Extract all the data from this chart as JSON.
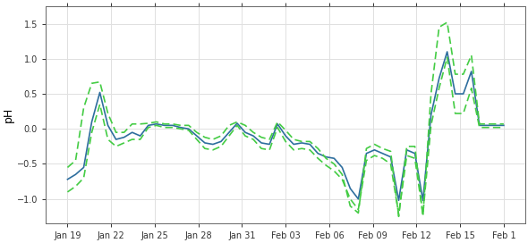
{
  "title": "",
  "ylabel": "pH",
  "ylim": [
    -1.35,
    1.75
  ],
  "yticks": [
    -1.0,
    -0.5,
    0.0,
    0.5,
    1.0,
    1.5
  ],
  "background_color": "#ffffff",
  "grid_color": "#e0e0e0",
  "line_color_solid": "#2e6e9e",
  "line_color_dashed": "#44cc44",
  "x_labels": [
    "Jan 19",
    "Jan 22",
    "Jan 25",
    "Jan 28",
    "Jan 31",
    "Feb 03",
    "Feb 06",
    "Feb 09",
    "Feb 12",
    "Feb 15",
    "Feb 1"
  ],
  "n_points": 55,
  "solid_y": [
    -0.72,
    -0.65,
    -0.55,
    0.1,
    0.52,
    0.05,
    -0.15,
    -0.12,
    -0.05,
    -0.1,
    0.05,
    0.07,
    0.05,
    0.05,
    0.02,
    0.0,
    -0.1,
    -0.2,
    -0.22,
    -0.18,
    -0.05,
    0.08,
    -0.05,
    -0.1,
    -0.2,
    -0.22,
    0.07,
    -0.1,
    -0.22,
    -0.2,
    -0.22,
    -0.35,
    -0.4,
    -0.42,
    -0.55,
    -0.85,
    -1.0,
    -0.35,
    -0.3,
    -0.35,
    -0.4,
    -1.02,
    -0.3,
    -0.35,
    -1.02,
    0.2,
    0.72,
    1.1,
    0.5,
    0.5,
    0.82,
    0.05,
    0.05,
    0.05,
    0.05
  ],
  "dashed_upper_y": [
    -0.55,
    -0.45,
    0.3,
    0.65,
    0.67,
    0.22,
    -0.05,
    -0.05,
    0.07,
    0.07,
    0.08,
    0.1,
    0.07,
    0.07,
    0.05,
    0.05,
    -0.05,
    -0.12,
    -0.15,
    -0.1,
    0.05,
    0.1,
    0.05,
    -0.05,
    -0.12,
    -0.15,
    0.1,
    -0.02,
    -0.15,
    -0.18,
    -0.18,
    -0.28,
    -0.42,
    -0.5,
    -0.65,
    -1.1,
    -1.2,
    -0.28,
    -0.22,
    -0.28,
    -0.32,
    -1.25,
    -0.25,
    -0.25,
    -1.25,
    0.5,
    1.45,
    1.52,
    0.78,
    0.78,
    1.05,
    0.07,
    0.07,
    0.07,
    0.07
  ],
  "dashed_lower_y": [
    -0.9,
    -0.82,
    -0.7,
    -0.05,
    0.35,
    -0.15,
    -0.25,
    -0.2,
    -0.15,
    -0.15,
    0.02,
    0.05,
    0.02,
    0.02,
    0.0,
    -0.02,
    -0.15,
    -0.28,
    -0.3,
    -0.25,
    -0.1,
    0.05,
    -0.1,
    -0.15,
    -0.28,
    -0.3,
    0.02,
    -0.18,
    -0.3,
    -0.28,
    -0.3,
    -0.42,
    -0.52,
    -0.6,
    -0.72,
    -1.0,
    -1.15,
    -0.45,
    -0.38,
    -0.42,
    -0.5,
    -1.22,
    -0.38,
    -0.42,
    -1.22,
    0.05,
    0.58,
    1.02,
    0.22,
    0.22,
    0.58,
    0.02,
    0.02,
    0.02,
    0.02
  ],
  "figsize": [
    5.9,
    2.72
  ],
  "dpi": 100,
  "linewidth": 1.2,
  "tick_labelsize": 7,
  "ylabel_fontsize": 9
}
